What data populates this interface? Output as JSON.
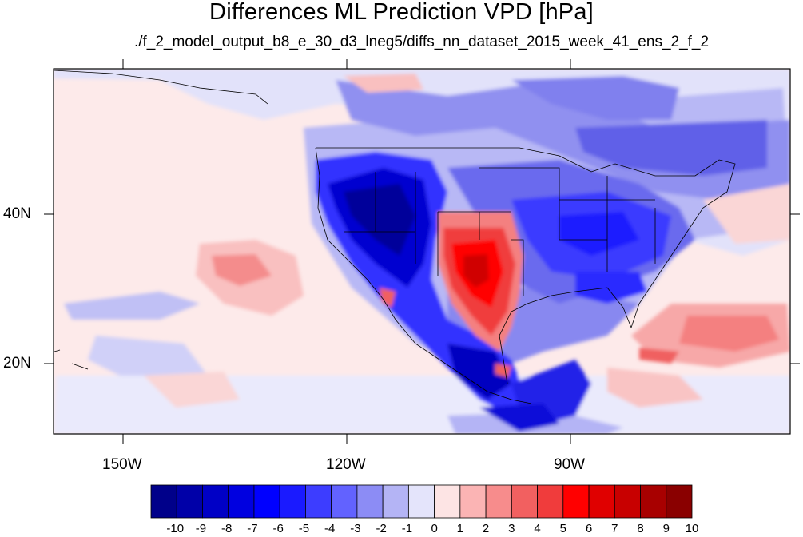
{
  "title": "Differences ML Prediction VPD [hPa]",
  "subtitle": "./f_2_model_output_b8_e_30_d3_lneg5/diffs_nn_dataset_2015_week_41_ens_2_f_2",
  "map": {
    "lon_labels": [
      "150W",
      "120W",
      "90W"
    ],
    "lat_labels": [
      "40N",
      "20N"
    ],
    "lon_range": [
      -159.3,
      -61.3
    ],
    "lat_range": [
      11,
      60
    ]
  },
  "colorbar": {
    "labels": [
      "-10",
      "-9",
      "-8",
      "-7",
      "-6",
      "-5",
      "-4",
      "-3",
      "-2",
      "-1",
      "0",
      "1",
      "2",
      "3",
      "4",
      "5",
      "6",
      "7",
      "8",
      "9",
      "10"
    ],
    "colors": [
      "#00008a",
      "#0000a8",
      "#0000c6",
      "#0000e0",
      "#0000ff",
      "#1a1aff",
      "#3d3dff",
      "#6262ff",
      "#8c8cf5",
      "#b4b4f5",
      "#e4e4fb",
      "#fde4e4",
      "#fbb4b4",
      "#f78c8c",
      "#f26060",
      "#f03c3c",
      "#ff0000",
      "#e00000",
      "#c80000",
      "#a80000",
      "#8a0000"
    ]
  }
}
